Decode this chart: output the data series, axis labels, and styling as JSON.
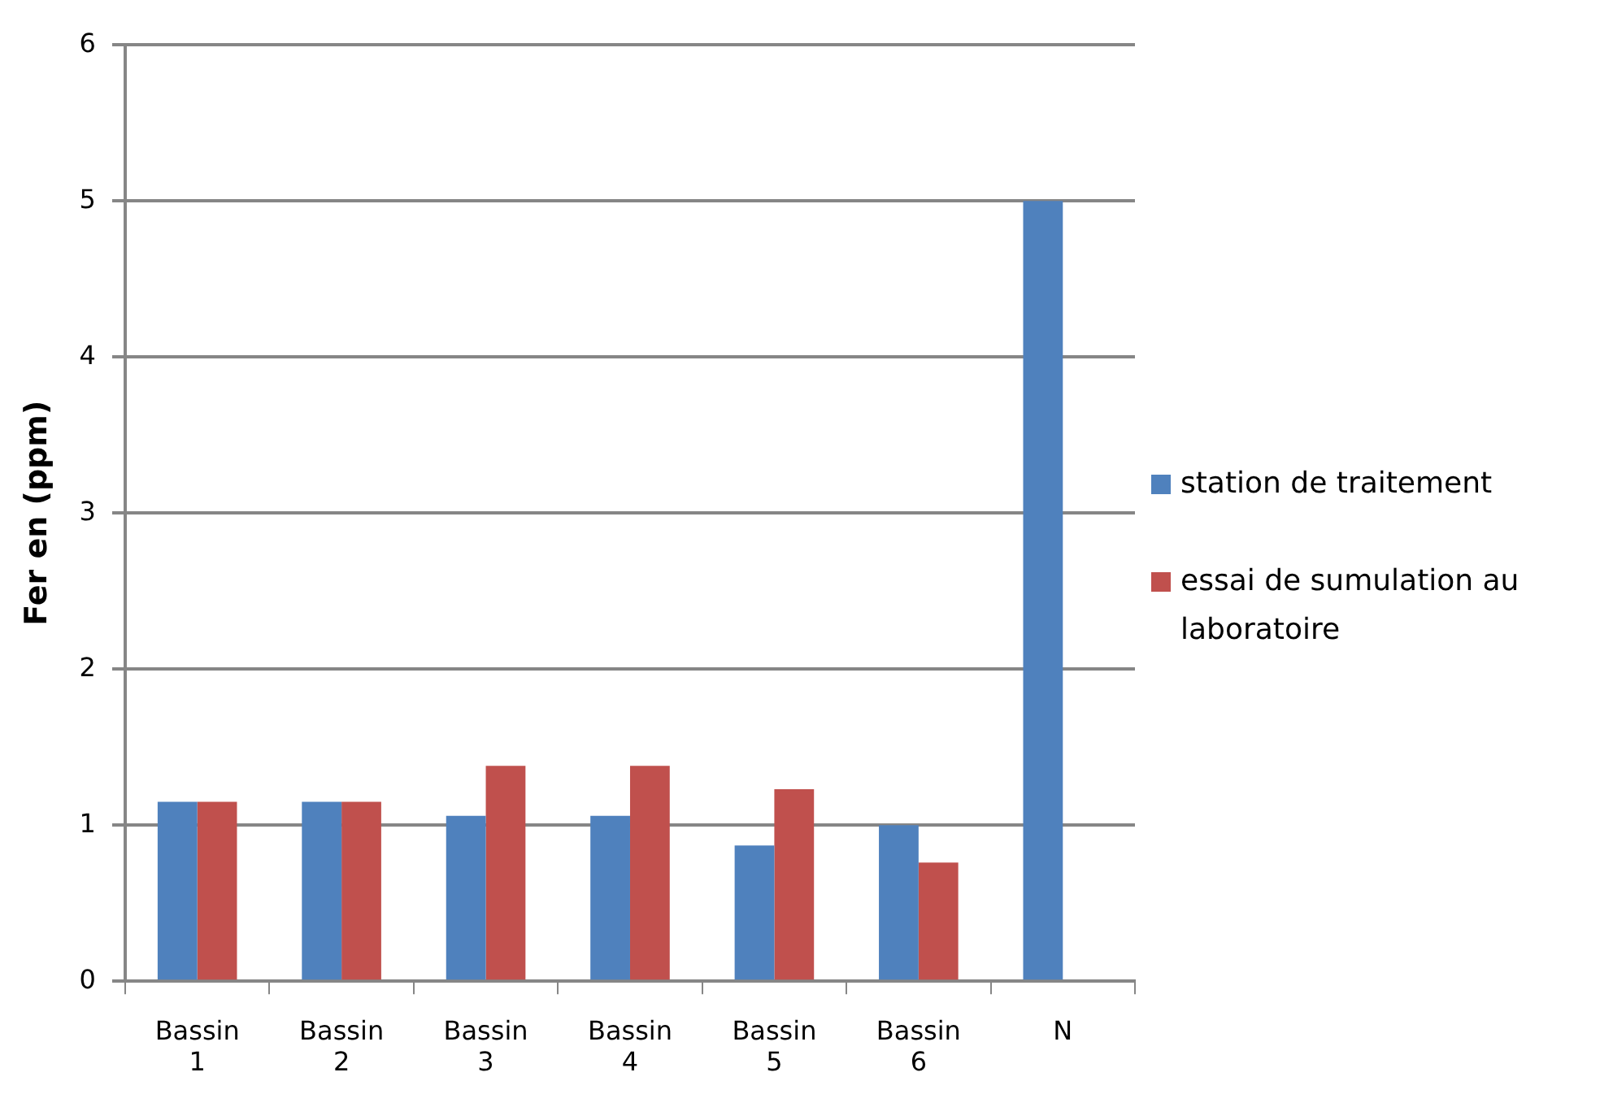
{
  "chart_data": {
    "type": "bar",
    "ylabel": "Fer en (ppm)",
    "categories": [
      "Bassin 1",
      "Bassin 2",
      "Bassin 3",
      "Bassin 4",
      "Bassin 5",
      "Bassin 6",
      "N"
    ],
    "series": [
      {
        "name": "station de traitement",
        "color": "#4f81bd",
        "values": [
          1.15,
          1.15,
          1.06,
          1.06,
          0.87,
          1.0,
          5
        ]
      },
      {
        "name": "essai de sumulation au laboratoire",
        "color": "#c0504d",
        "values": [
          1.15,
          1.15,
          1.38,
          1.38,
          1.23,
          0.76,
          null
        ]
      }
    ],
    "ylim": [
      0,
      6
    ],
    "yticks": [
      0,
      1,
      2,
      3,
      4,
      5,
      6
    ],
    "grid": "y",
    "legend": "right"
  }
}
